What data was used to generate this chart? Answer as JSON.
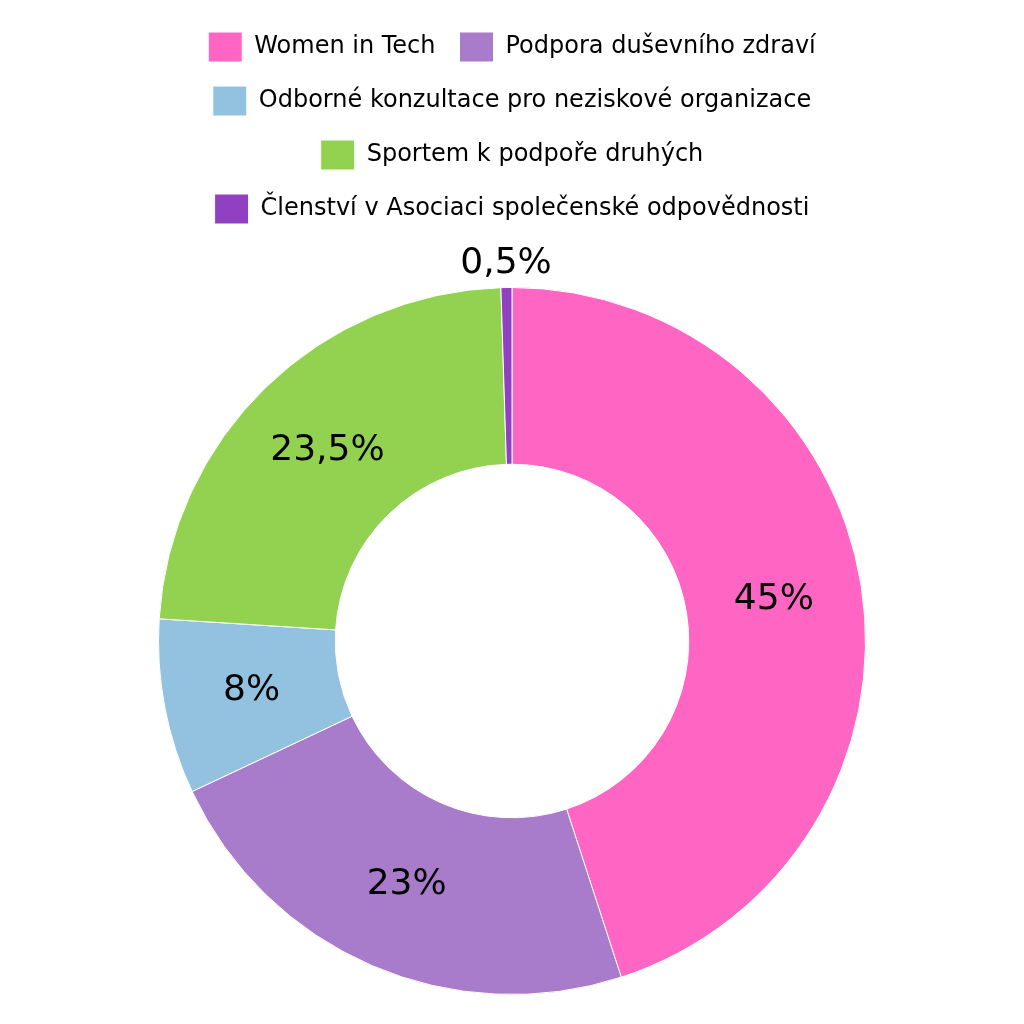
{
  "chart_data": {
    "type": "donut",
    "categories": [
      "Women in Tech",
      "Podpora duševního zdraví",
      "Odborné konzultace pro neziskové organizace",
      "Sportem k podpoře druhých",
      "Členství v Asociaci společenské odpovědnosti"
    ],
    "values": [
      45,
      23,
      8,
      23.5,
      0.5
    ],
    "colors": [
      "#ff66c4",
      "#a97bcb",
      "#93c2e0",
      "#93d150",
      "#9240c2"
    ],
    "value_labels": [
      "45%",
      "23%",
      "8%",
      "23,5%",
      "0,5%"
    ],
    "legend": "top"
  }
}
